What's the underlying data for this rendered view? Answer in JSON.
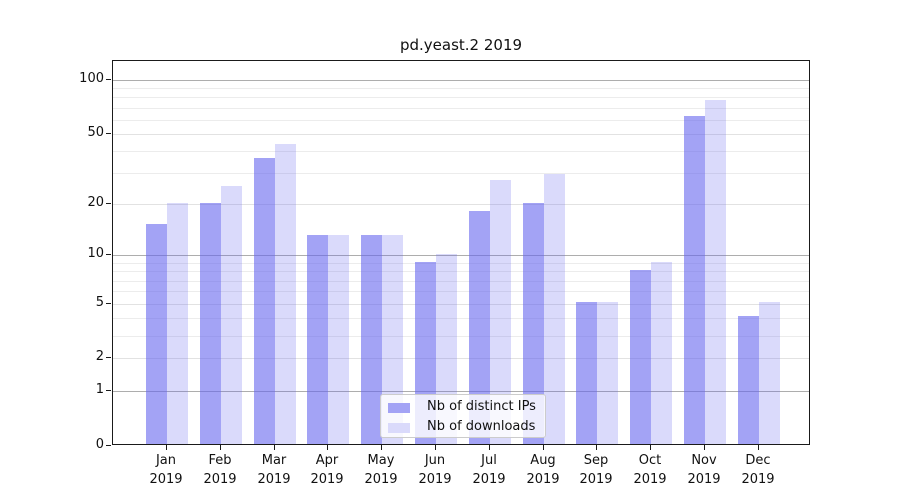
{
  "title": "pd.yeast.2 2019",
  "chart_data": {
    "type": "bar",
    "title": "pd.yeast.2 2019",
    "xlabel": "",
    "ylabel": "",
    "year": "2019",
    "categories": [
      "Jan",
      "Feb",
      "Mar",
      "Apr",
      "May",
      "Jun",
      "Jul",
      "Aug",
      "Sep",
      "Oct",
      "Nov",
      "Dec"
    ],
    "series": [
      {
        "name": "Nb of distinct IPs",
        "color": "#6666ee",
        "alpha": 0.6,
        "values": [
          15,
          20,
          36,
          13,
          13,
          9,
          18,
          20,
          5,
          8,
          62,
          4
        ]
      },
      {
        "name": "Nb of downloads",
        "color": "#6666ee",
        "alpha": 0.24,
        "values": [
          20,
          25,
          43,
          13,
          13,
          10,
          27,
          29,
          5,
          9,
          76,
          5
        ]
      }
    ],
    "yscale": "log1p",
    "yticks": [
      0,
      1,
      2,
      5,
      10,
      20,
      50,
      100
    ],
    "ylim": [
      0,
      127
    ],
    "grid": "both",
    "legend": {
      "entries": [
        "Nb of distinct IPs",
        "Nb of downloads"
      ],
      "position": "lower center inside"
    }
  }
}
